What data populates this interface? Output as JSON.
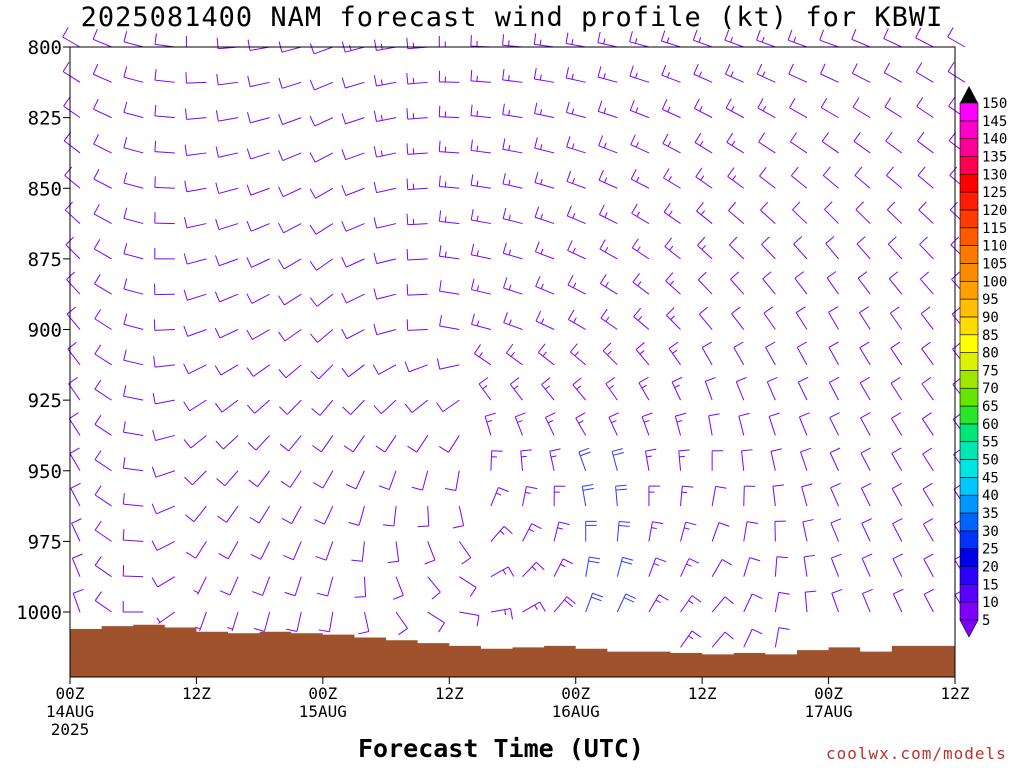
{
  "chart_data": {
    "type": "wind-barb-profile",
    "title": "2025081400 NAM forecast wind profile (kt) for KBWI",
    "xlabel": "Forecast Time (UTC)",
    "y_axis": {
      "ticks": [
        800,
        825,
        850,
        875,
        900,
        925,
        950,
        975,
        1000
      ],
      "range": [
        800,
        1023
      ],
      "inverted": true
    },
    "x_axis": {
      "ticks": [
        {
          "hour": 0,
          "labels": [
            "00Z",
            "14AUG",
            "2025"
          ]
        },
        {
          "hour": 12,
          "labels": [
            "12Z"
          ]
        },
        {
          "hour": 24,
          "labels": [
            "00Z",
            "15AUG"
          ]
        },
        {
          "hour": 36,
          "labels": [
            "12Z"
          ]
        },
        {
          "hour": 48,
          "labels": [
            "00Z",
            "16AUG"
          ]
        },
        {
          "hour": 60,
          "labels": [
            "12Z"
          ]
        },
        {
          "hour": 72,
          "labels": [
            "00Z",
            "17AUG"
          ]
        },
        {
          "hour": 84,
          "labels": [
            "12Z"
          ]
        }
      ],
      "range": [
        0,
        84
      ]
    },
    "surface_color": "#a0522d",
    "surface_pressure": [
      {
        "hour": 0,
        "p": 1006
      },
      {
        "hour": 3,
        "p": 1005
      },
      {
        "hour": 6,
        "p": 1004.5
      },
      {
        "hour": 9,
        "p": 1005.5
      },
      {
        "hour": 12,
        "p": 1007
      },
      {
        "hour": 15,
        "p": 1007.5
      },
      {
        "hour": 18,
        "p": 1007
      },
      {
        "hour": 21,
        "p": 1007.5
      },
      {
        "hour": 24,
        "p": 1008
      },
      {
        "hour": 27,
        "p": 1009
      },
      {
        "hour": 30,
        "p": 1010
      },
      {
        "hour": 33,
        "p": 1011
      },
      {
        "hour": 36,
        "p": 1012
      },
      {
        "hour": 39,
        "p": 1013
      },
      {
        "hour": 42,
        "p": 1012.5
      },
      {
        "hour": 45,
        "p": 1012
      },
      {
        "hour": 48,
        "p": 1013
      },
      {
        "hour": 51,
        "p": 1014
      },
      {
        "hour": 54,
        "p": 1014
      },
      {
        "hour": 57,
        "p": 1014.5
      },
      {
        "hour": 60,
        "p": 1015
      },
      {
        "hour": 63,
        "p": 1014.5
      },
      {
        "hour": 66,
        "p": 1015
      },
      {
        "hour": 69,
        "p": 1013.5
      },
      {
        "hour": 72,
        "p": 1012.5
      },
      {
        "hour": 75,
        "p": 1014
      },
      {
        "hour": 78,
        "p": 1012
      },
      {
        "hour": 81,
        "p": 1012
      },
      {
        "hour": 84,
        "p": 1012
      }
    ],
    "colorbar": {
      "min_label": "5",
      "labels": [
        "10",
        "15",
        "20",
        "25",
        "30",
        "35",
        "40",
        "45",
        "50",
        "55",
        "60",
        "65",
        "70",
        "75",
        "80",
        "85",
        "90",
        "95",
        "100",
        "105",
        "110",
        "115",
        "120",
        "125",
        "130",
        "135",
        "140",
        "145",
        "150"
      ],
      "colors": [
        "#7f00ff",
        "#5a00ff",
        "#2a00ff",
        "#0000e6",
        "#0032ff",
        "#0064ff",
        "#0096ff",
        "#00c8ff",
        "#00e6e6",
        "#00e6b4",
        "#00e678",
        "#28e628",
        "#64e600",
        "#a0e600",
        "#dcf000",
        "#ffff00",
        "#ffdc00",
        "#ffbe00",
        "#ffa000",
        "#ff8c00",
        "#ff7800",
        "#ff5a00",
        "#ff3c00",
        "#ff1e00",
        "#ff0000",
        "#ff0050",
        "#ff0096",
        "#ff00c8",
        "#ff00ff"
      ]
    },
    "barb_color": "#7f00ff",
    "barb_fast_color": "#2a3cff",
    "wind_field": {
      "hours_step": 3,
      "levels_step": 12.5,
      "knots": [
        {
          "hour": 0,
          "dir": [
            300,
            320,
            340
          ],
          "speed": [
            12,
            10,
            8
          ]
        },
        {
          "hour": 12,
          "dir": [
            270,
            250,
            200
          ],
          "speed": [
            12,
            10,
            7
          ]
        },
        {
          "hour": 24,
          "dir": [
            250,
            230,
            190
          ],
          "speed": [
            12,
            10,
            8
          ]
        },
        {
          "hour": 36,
          "dir": [
            270,
            280,
            100
          ],
          "speed": [
            15,
            12,
            10
          ]
        },
        {
          "hour": 48,
          "dir": [
            280,
            300,
            20
          ],
          "speed": [
            15,
            14,
            20
          ]
        },
        {
          "hour": 60,
          "dir": [
            290,
            320,
            40
          ],
          "speed": [
            14,
            12,
            12
          ]
        },
        {
          "hour": 72,
          "dir": [
            290,
            330,
            340
          ],
          "speed": [
            12,
            10,
            10
          ]
        },
        {
          "hour": 84,
          "dir": [
            300,
            320,
            330
          ],
          "speed": [
            12,
            10,
            10
          ]
        }
      ]
    }
  },
  "credit": "coolwx.com/models"
}
